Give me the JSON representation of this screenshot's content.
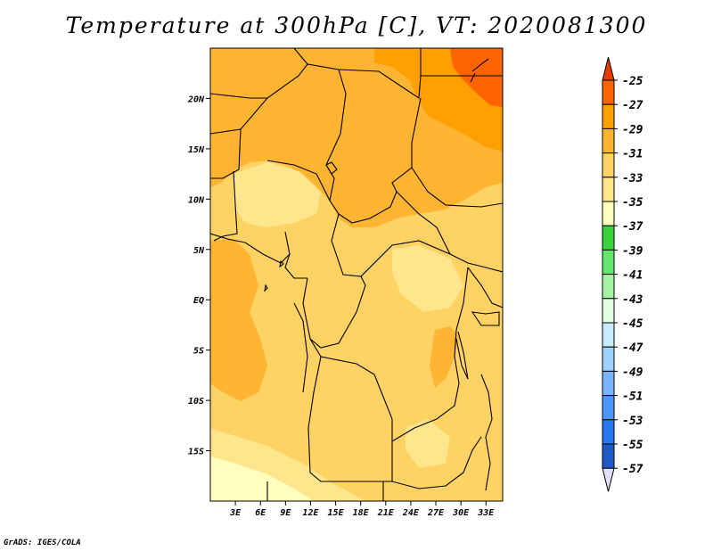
{
  "title": "Temperature at 300hPa [C], VT: 2020081300",
  "footer": "GrADS: IGES/COLA",
  "map": {
    "lon_range": [
      0,
      35
    ],
    "lat_range": [
      -20,
      25
    ],
    "lon_labels": [
      {
        "lon": 3,
        "label": "3E"
      },
      {
        "lon": 6,
        "label": "6E"
      },
      {
        "lon": 9,
        "label": "9E"
      },
      {
        "lon": 12,
        "label": "12E"
      },
      {
        "lon": 15,
        "label": "15E"
      },
      {
        "lon": 18,
        "label": "18E"
      },
      {
        "lon": 21,
        "label": "21E"
      },
      {
        "lon": 24,
        "label": "24E"
      },
      {
        "lon": 27,
        "label": "27E"
      },
      {
        "lon": 30,
        "label": "30E"
      },
      {
        "lon": 33,
        "label": "33E"
      }
    ],
    "lat_labels": [
      {
        "lat": 20,
        "label": "20N"
      },
      {
        "lat": 15,
        "label": "15N"
      },
      {
        "lat": 10,
        "label": "10N"
      },
      {
        "lat": 5,
        "label": "5N"
      },
      {
        "lat": 0,
        "label": "EQ"
      },
      {
        "lat": -5,
        "label": "5S"
      },
      {
        "lat": -10,
        "label": "10S"
      },
      {
        "lat": -15,
        "label": "15S"
      }
    ]
  },
  "colorbar": {
    "levels": [
      "-25",
      "-27",
      "-29",
      "-31",
      "-33",
      "-35",
      "-37",
      "-39",
      "-41",
      "-43",
      "-45",
      "-47",
      "-49",
      "-51",
      "-53",
      "-55",
      "-57"
    ],
    "colors": [
      "#f0f0f0",
      "#ff6400",
      "#ffa000",
      "#ffb432",
      "#ffd264",
      "#ffe68c",
      "#ffffbe",
      "#37d23c",
      "#64e66e",
      "#a5f5a5",
      "#e1ffe1",
      "#c8ebff",
      "#a0d2ff",
      "#78b4ff",
      "#4b96ff",
      "#2878f0",
      "#1e5ac8",
      "#0a0a82"
    ],
    "top_color": "#ff6400",
    "top_cap": "#e63c00",
    "bottom_cap": "#e1e1ff"
  }
}
